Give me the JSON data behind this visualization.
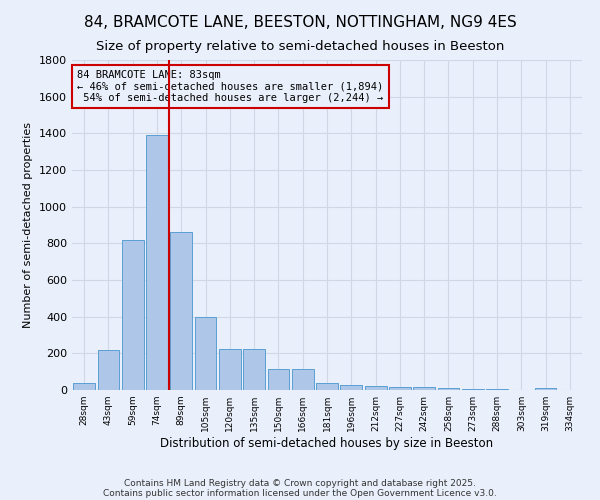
{
  "title": "84, BRAMCOTE LANE, BEESTON, NOTTINGHAM, NG9 4ES",
  "subtitle": "Size of property relative to semi-detached houses in Beeston",
  "xlabel": "Distribution of semi-detached houses by size in Beeston",
  "ylabel": "Number of semi-detached properties",
  "categories": [
    "28sqm",
    "43sqm",
    "59sqm",
    "74sqm",
    "89sqm",
    "105sqm",
    "120sqm",
    "135sqm",
    "150sqm",
    "166sqm",
    "181sqm",
    "196sqm",
    "212sqm",
    "227sqm",
    "242sqm",
    "258sqm",
    "273sqm",
    "288sqm",
    "303sqm",
    "319sqm",
    "334sqm"
  ],
  "values": [
    40,
    220,
    820,
    1390,
    860,
    400,
    225,
    225,
    115,
    115,
    40,
    30,
    20,
    15,
    15,
    10,
    5,
    5,
    0,
    10,
    0
  ],
  "bar_color": "#aec6e8",
  "bar_edge_color": "#5a9fd4",
  "grid_color": "#d0d8e8",
  "bg_color": "#eaf0fb",
  "property_line_idx": 3.5,
  "property_sqm": 83,
  "pct_smaller": 46,
  "pct_larger": 54,
  "n_smaller": 1894,
  "n_larger": 2244,
  "annotation_box_color": "#cc0000",
  "ylim": [
    0,
    1800
  ],
  "yticks": [
    0,
    200,
    400,
    600,
    800,
    1000,
    1200,
    1400,
    1600,
    1800
  ],
  "footnote1": "Contains HM Land Registry data © Crown copyright and database right 2025.",
  "footnote2": "Contains public sector information licensed under the Open Government Licence v3.0.",
  "title_fontsize": 11,
  "subtitle_fontsize": 9.5
}
